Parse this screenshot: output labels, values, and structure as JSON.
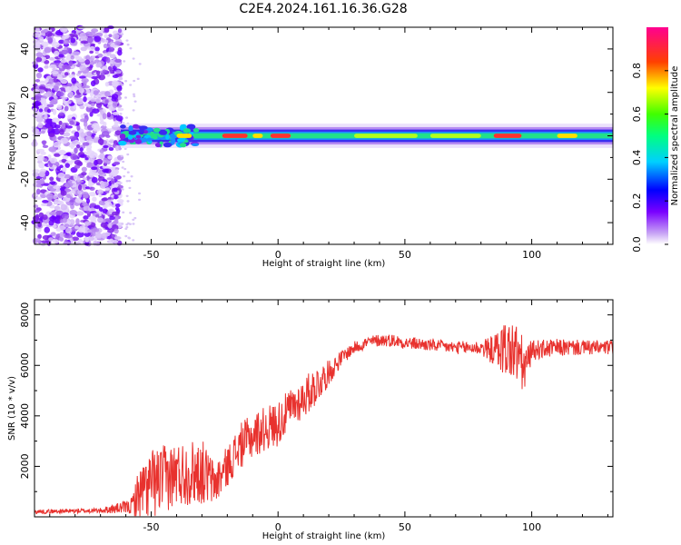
{
  "title": "C2E4.2024.161.16.36.G28",
  "colors": {
    "snr_line": "#e8322e",
    "frame": "#000000"
  },
  "chart_data": [
    {
      "type": "heatmap",
      "name": "spectrogram",
      "xlabel": "Height of straight line (km)",
      "ylabel": "Frequency (Hz)",
      "xlim": [
        -96,
        132
      ],
      "ylim": [
        -50,
        50
      ],
      "xticks": [
        -50,
        0,
        50,
        100
      ],
      "yticks": [
        -40,
        -20,
        0,
        20,
        40
      ],
      "grid": false,
      "description_regions": {
        "noise_region_x": [
          -96,
          -62
        ],
        "signal_band_center_hz": 0,
        "signal_band_halfwidth_hz": 4
      },
      "colorbar": {
        "label": "Normalized spectral amplitude",
        "range": [
          0,
          1
        ],
        "ticks": [
          0.0,
          0.2,
          0.4,
          0.6,
          0.8
        ],
        "tick_labels": [
          "0.0",
          "0.2",
          "0.4",
          "0.6",
          "0.8"
        ],
        "colormap": "rainbow (white-violet-blue-cyan-green-yellow-red-magenta)"
      }
    },
    {
      "type": "line",
      "name": "snr",
      "xlabel": "Height of straight line (km)",
      "ylabel": "SNR (10 * v/v)",
      "xlim": [
        -96,
        132
      ],
      "ylim": [
        0,
        8600
      ],
      "xticks": [
        -50,
        0,
        50,
        100
      ],
      "yticks": [
        2000,
        4000,
        6000,
        8000
      ],
      "grid": false,
      "profile": {
        "x": [
          -96,
          -70,
          -58,
          -55,
          -50,
          -40,
          -30,
          -25,
          -20,
          -15,
          -10,
          -5,
          0,
          5,
          10,
          15,
          20,
          25,
          30,
          35,
          40,
          45,
          50,
          60,
          70,
          80,
          85,
          90,
          95,
          97,
          100,
          110,
          120,
          132
        ],
        "mean": [
          200,
          250,
          400,
          900,
          1300,
          1700,
          1800,
          1300,
          2000,
          2800,
          3200,
          3500,
          3700,
          4300,
          4700,
          5200,
          5700,
          6300,
          6700,
          6900,
          7000,
          7000,
          6900,
          6800,
          6700,
          6700,
          6600,
          6700,
          6400,
          5800,
          6600,
          6700,
          6700,
          6700
        ],
        "amp": [
          80,
          100,
          300,
          1000,
          1400,
          1300,
          1300,
          900,
          800,
          900,
          900,
          900,
          900,
          800,
          800,
          800,
          500,
          300,
          250,
          250,
          250,
          250,
          250,
          250,
          250,
          300,
          600,
          1200,
          1300,
          1000,
          400,
          350,
          300,
          300
        ]
      }
    }
  ]
}
